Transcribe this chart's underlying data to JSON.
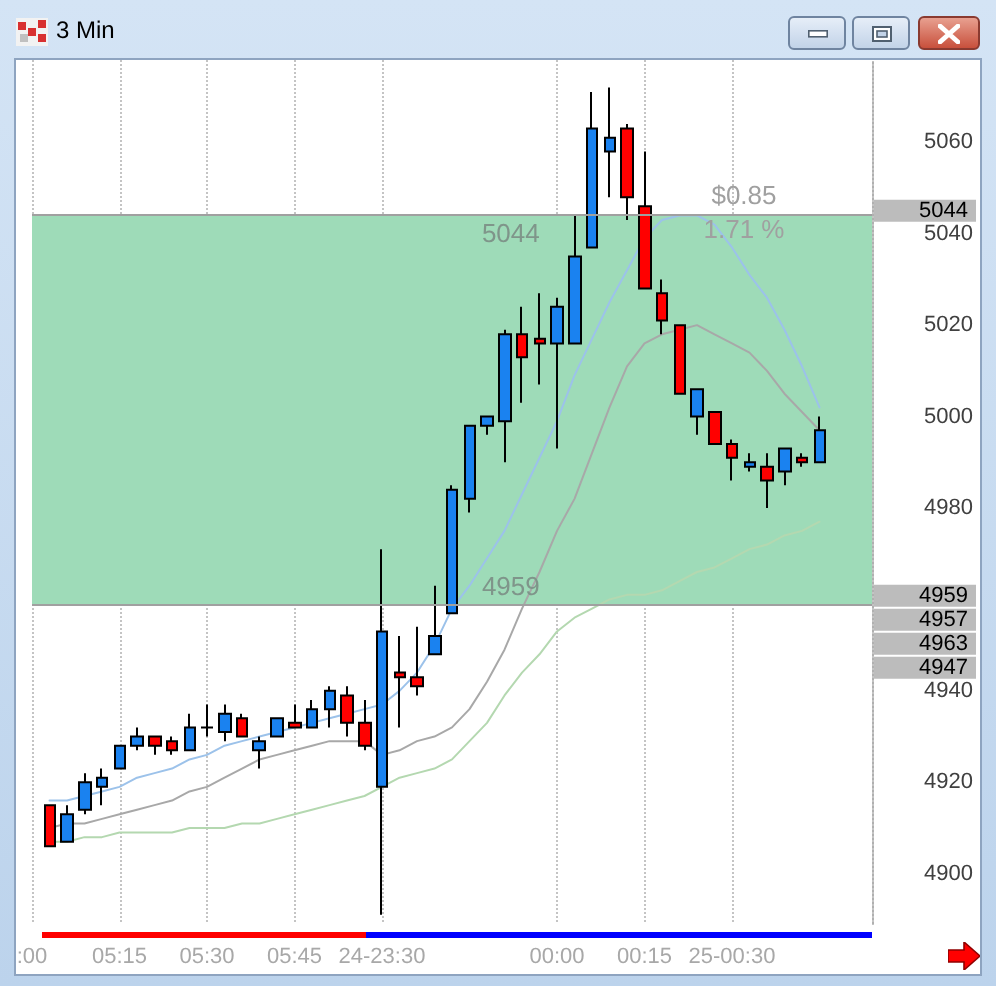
{
  "chart_data": {
    "type": "candlestick",
    "title": "3 Min",
    "categories": [
      ":00",
      null,
      null,
      null,
      null,
      "05:15",
      null,
      null,
      null,
      null,
      "05:30",
      null,
      null,
      null,
      null,
      "05:45",
      null,
      null,
      null,
      null,
      "24-23:30",
      null,
      null,
      null,
      null,
      null,
      null,
      null,
      null,
      null,
      "00:00",
      null,
      null,
      null,
      null,
      "00:15",
      null,
      null,
      null,
      null,
      "25-00:30",
      null,
      null,
      null,
      null,
      null,
      null,
      null,
      null
    ],
    "ohlc": [
      null,
      [
        4915,
        4915,
        4906,
        4906
      ],
      [
        4907,
        4915,
        4907,
        4913
      ],
      [
        4914,
        4922,
        4913,
        4920
      ],
      [
        4919,
        4923,
        4915,
        4921
      ],
      [
        4923,
        4928,
        4923,
        4928
      ],
      [
        4928,
        4932,
        4927,
        4930
      ],
      [
        4930,
        4930,
        4926,
        4928
      ],
      [
        4929,
        4930,
        4926,
        4927
      ],
      [
        4927,
        4935,
        4927,
        4932
      ],
      [
        4932,
        4937,
        4930,
        4932
      ],
      [
        4931,
        4937,
        4929,
        4935
      ],
      [
        4934,
        4935,
        4930,
        4930
      ],
      [
        4927,
        4930,
        4923,
        4929
      ],
      [
        4930,
        4934,
        4930,
        4934
      ],
      [
        4933,
        4937,
        4932,
        4932
      ],
      [
        4932,
        4938,
        4932,
        4936
      ],
      [
        4936,
        4941,
        4932,
        4940
      ],
      [
        4939,
        4941,
        4930,
        4933
      ],
      [
        4933,
        4938,
        4927,
        4928
      ],
      [
        4919,
        4971,
        4891,
        4953
      ],
      [
        4944,
        4952,
        4932,
        4943
      ],
      [
        4943,
        4954,
        4939,
        4941
      ],
      [
        4948,
        4963,
        4948,
        4952
      ],
      [
        4957,
        4985,
        4957,
        4984
      ],
      [
        4982,
        4998,
        4979,
        4998
      ],
      [
        4998,
        5000,
        4996,
        5000
      ],
      [
        4999,
        5019,
        4990,
        5018
      ],
      [
        5018,
        5024,
        5003,
        5013
      ],
      [
        5017,
        5027,
        5007,
        5016
      ],
      [
        5016,
        5026,
        4993,
        5024
      ],
      [
        5016,
        5044,
        5016,
        5035
      ],
      [
        5037,
        5071,
        5037,
        5063
      ],
      [
        5058,
        5072,
        5048,
        5061
      ],
      [
        5063,
        5064,
        5043,
        5048
      ],
      [
        5046,
        5058,
        5028,
        5028
      ],
      [
        5027,
        5030,
        5018,
        5021
      ],
      [
        5020,
        5020,
        5005,
        5005
      ],
      [
        5000,
        5006,
        4996,
        5006
      ],
      [
        5001,
        5001,
        4994,
        4994
      ],
      [
        4994,
        4995,
        4986,
        4991
      ],
      [
        4989,
        4992,
        4988,
        4990
      ],
      [
        4989,
        4992,
        4980,
        4986
      ],
      [
        4988,
        4993,
        4985,
        4993
      ],
      [
        4991,
        4992,
        4989,
        4990
      ],
      [
        4990,
        5000,
        4990,
        4997
      ],
      null,
      null,
      null
    ],
    "colors": [
      null,
      "#ff0000",
      "#1a82f0",
      "#1a82f0",
      "#1a82f0",
      "#1a82f0",
      "#1a82f0",
      "#ff0000",
      "#ff0000",
      "#1a82f0",
      "#000000",
      "#1a82f0",
      "#ff0000",
      "#1a82f0",
      "#1a82f0",
      "#ff0000",
      "#1a82f0",
      "#1a82f0",
      "#ff0000",
      "#ff0000",
      "#1a82f0",
      "#ff0000",
      "#ff0000",
      "#1a82f0",
      "#1a82f0",
      "#1a82f0",
      "#1a82f0",
      "#1a82f0",
      "#ff0000",
      "#ff0000",
      "#1a82f0",
      "#1a82f0",
      "#1a82f0",
      "#1a82f0",
      "#ff0000",
      "#ff0000",
      "#ff0000",
      "#ff0000",
      "#1a82f0",
      "#ff0000",
      "#ff0000",
      "#1a82f0",
      "#ff0000",
      "#1a82f0",
      "#ff0000",
      "#1a82f0",
      null,
      null,
      null
    ],
    "series": [
      {
        "type": "line",
        "color": "#9cc2ea",
        "values": [
          null,
          4916,
          4916,
          4917,
          4918,
          4919,
          4921,
          4922,
          4923,
          4925,
          4926,
          4928,
          4929,
          4930,
          4931,
          4932,
          4933,
          4934,
          4935,
          4936,
          4937,
          4940,
          4944,
          4950,
          4958,
          4963,
          4969,
          4975,
          4983,
          4991,
          4999,
          5009,
          5017,
          5025,
          5032,
          5039,
          5043,
          5044,
          5044,
          5042,
          5037,
          5031,
          5026,
          5019,
          5011,
          5002,
          null,
          null,
          null
        ]
      },
      {
        "type": "line",
        "color": "#a8a8a8",
        "values": [
          null,
          4910,
          4911,
          4911,
          4912,
          4913,
          4914,
          4915,
          4916,
          4918,
          4919,
          4921,
          4923,
          4925,
          4926,
          4927,
          4928,
          4929,
          4929,
          4929,
          4926,
          4927,
          4929,
          4930,
          4932,
          4936,
          4942,
          4949,
          4958,
          4966,
          4975,
          4982,
          4992,
          5002,
          5011,
          5016,
          5018,
          5019,
          5020,
          5018,
          5016,
          5014,
          5010,
          5005,
          5001,
          4997,
          null,
          null,
          null
        ]
      },
      {
        "type": "line",
        "color": "#b4d8b0",
        "values": [
          null,
          4907,
          4907,
          4908,
          4908,
          4909,
          4909,
          4909,
          4909,
          4910,
          4910,
          4910,
          4911,
          4911,
          4912,
          4913,
          4914,
          4915,
          4916,
          4917,
          4919,
          4921,
          4922,
          4923,
          4925,
          4929,
          4933,
          4939,
          4944,
          4948,
          4953,
          4956,
          4958,
          4960,
          4961,
          4961,
          4962,
          4964,
          4966,
          4967,
          4969,
          4971,
          4972,
          4974,
          4975,
          4977,
          null,
          null,
          null
        ]
      }
    ],
    "ref_lines": [
      {
        "axis": "y",
        "value": 5044,
        "label": "5044",
        "color": "#a0a0a0"
      },
      {
        "axis": "y",
        "value": 4959,
        "label": "4959",
        "color": "#a0a0a0"
      }
    ],
    "bands": [
      {
        "axis": "y",
        "from": 4959,
        "to": 5044,
        "color": "#9edbb8"
      }
    ],
    "annotations": [
      "$0.85",
      "1.71 %",
      "4957",
      "4963",
      "4947"
    ],
    "grid": "x",
    "marker": "none",
    "ylim": [
      4889,
      5078
    ],
    "yticks": [
      4900,
      4920,
      4940,
      4980,
      5000,
      5020,
      5040,
      5060
    ]
  }
}
